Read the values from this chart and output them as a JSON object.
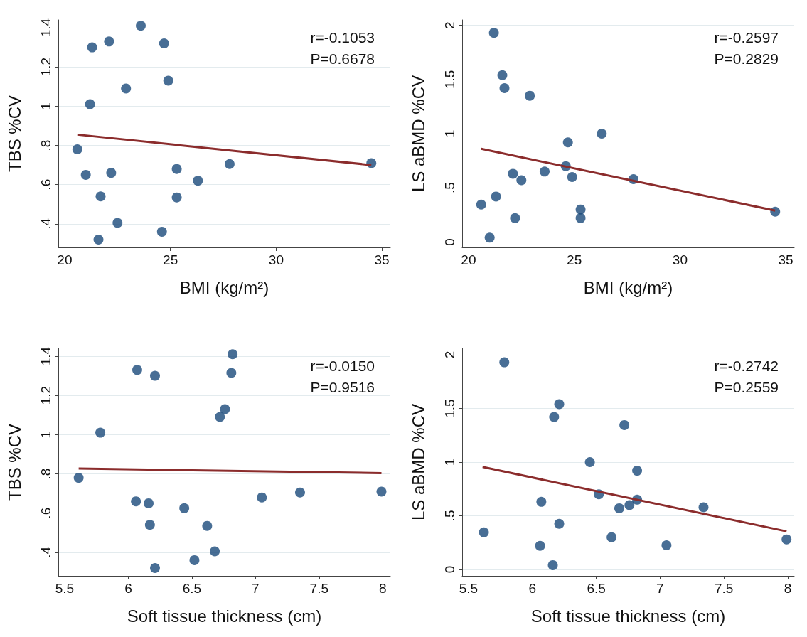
{
  "chart_data": [
    {
      "type": "scatter",
      "xlabel": "BMI (kg/m²)",
      "ylabel": "TBS %CV",
      "xlim": [
        19.7,
        35.4
      ],
      "xticks": [
        20,
        25,
        30,
        35
      ],
      "ylim": [
        0.28,
        1.44
      ],
      "yticks": [
        {
          "value": 0.4,
          "label": ".4"
        },
        {
          "value": 0.6,
          "label": ".6"
        },
        {
          "value": 0.8,
          "label": ".8"
        },
        1,
        1.2,
        1.4
      ],
      "grid": "y",
      "marker": "circle",
      "annotations": [
        "r=-0.1053",
        "P=0.6678"
      ],
      "series": [
        {
          "color": "#1a4a7a",
          "x": [
            21.3,
            22.1,
            23.6,
            24.7,
            24.9,
            22.9,
            21.2,
            20.6,
            21.0,
            22.2,
            21.7,
            22.5,
            21.6,
            24.6,
            25.3,
            25.3,
            26.3,
            27.8,
            34.5
          ],
          "values": [
            1.3,
            1.33,
            1.41,
            1.32,
            1.13,
            1.09,
            1.01,
            0.78,
            0.65,
            0.66,
            0.54,
            0.405,
            0.32,
            0.36,
            0.68,
            0.535,
            0.62,
            0.705,
            0.71
          ]
        },
        {
          "type": "line",
          "color": "#8b2c2c",
          "line_style": "solid",
          "marker": "none",
          "x": [
            20.6,
            34.5
          ],
          "values": [
            0.855,
            0.7
          ]
        }
      ]
    },
    {
      "type": "scatter",
      "xlabel": "BMI (kg/m²)",
      "ylabel": "LS aBMD %CV",
      "xlim": [
        19.7,
        35.4
      ],
      "xticks": [
        20,
        25,
        30,
        35
      ],
      "ylim": [
        -0.05,
        2.05
      ],
      "yticks": [
        0,
        {
          "value": 0.5,
          "label": ".5"
        },
        1,
        1.5,
        2
      ],
      "grid": "y",
      "marker": "circle",
      "annotations": [
        "r=-0.2597",
        "P=0.2829"
      ],
      "series": [
        {
          "color": "#1a4a7a",
          "x": [
            21.2,
            21.6,
            21.7,
            22.9,
            26.3,
            24.7,
            24.6,
            23.6,
            24.9,
            22.1,
            22.5,
            27.8,
            21.3,
            20.6,
            22.2,
            25.3,
            25.3,
            21.0,
            34.5
          ],
          "values": [
            1.93,
            1.54,
            1.42,
            1.35,
            1.0,
            0.92,
            0.7,
            0.65,
            0.6,
            0.63,
            0.57,
            0.58,
            0.42,
            0.345,
            0.22,
            0.3,
            0.22,
            0.04,
            0.28
          ]
        },
        {
          "type": "line",
          "color": "#8b2c2c",
          "line_style": "solid",
          "marker": "none",
          "x": [
            20.6,
            34.5
          ],
          "values": [
            0.86,
            0.29
          ]
        }
      ]
    },
    {
      "type": "scatter",
      "xlabel": "Soft tissue thickness (cm)",
      "ylabel": "TBS %CV",
      "xlim": [
        5.45,
        8.06
      ],
      "xticks": [
        5.5,
        6,
        6.5,
        7,
        7.5,
        8
      ],
      "ylim": [
        0.28,
        1.44
      ],
      "yticks": [
        {
          "value": 0.4,
          "label": ".4"
        },
        {
          "value": 0.6,
          "label": ".6"
        },
        {
          "value": 0.8,
          "label": ".8"
        },
        1,
        1.2,
        1.4
      ],
      "grid": "y",
      "marker": "circle",
      "annotations": [
        "r=-0.0150",
        "P=0.9516"
      ],
      "series": [
        {
          "color": "#1a4a7a",
          "x": [
            6.82,
            6.07,
            6.21,
            6.81,
            6.76,
            6.72,
            5.78,
            5.61,
            6.06,
            6.16,
            6.44,
            6.17,
            6.62,
            6.68,
            6.52,
            6.21,
            7.05,
            7.35,
            7.99
          ],
          "values": [
            1.41,
            1.33,
            1.3,
            1.315,
            1.13,
            1.09,
            1.01,
            0.78,
            0.66,
            0.65,
            0.625,
            0.54,
            0.535,
            0.405,
            0.36,
            0.32,
            0.68,
            0.705,
            0.71
          ]
        },
        {
          "type": "line",
          "color": "#8b2c2c",
          "line_style": "solid",
          "marker": "none",
          "x": [
            5.61,
            7.99
          ],
          "values": [
            0.827,
            0.804
          ]
        }
      ]
    },
    {
      "type": "scatter",
      "xlabel": "Soft tissue thickness (cm)",
      "ylabel": "LS aBMD %CV",
      "xlim": [
        5.45,
        8.05
      ],
      "xticks": [
        5.5,
        6,
        6.5,
        7,
        7.5,
        8
      ],
      "ylim": [
        -0.06,
        2.06
      ],
      "yticks": [
        0,
        {
          "value": 0.5,
          "label": ".5"
        },
        1,
        1.5,
        2
      ],
      "grid": "y",
      "marker": "circle",
      "annotations": [
        "r=-0.2742",
        "P=0.2559"
      ],
      "series": [
        {
          "color": "#1a4a7a",
          "x": [
            5.78,
            6.21,
            6.17,
            6.72,
            6.45,
            6.82,
            6.52,
            6.82,
            6.76,
            6.68,
            6.07,
            7.34,
            6.21,
            5.62,
            6.62,
            6.06,
            7.05,
            6.16,
            7.99
          ],
          "values": [
            1.93,
            1.54,
            1.42,
            1.345,
            1.0,
            0.92,
            0.7,
            0.65,
            0.6,
            0.57,
            0.63,
            0.58,
            0.425,
            0.345,
            0.3,
            0.22,
            0.225,
            0.04,
            0.28
          ]
        },
        {
          "type": "line",
          "color": "#8b2c2c",
          "line_style": "solid",
          "marker": "none",
          "x": [
            5.61,
            7.99
          ],
          "values": [
            0.955,
            0.355
          ]
        }
      ]
    }
  ]
}
